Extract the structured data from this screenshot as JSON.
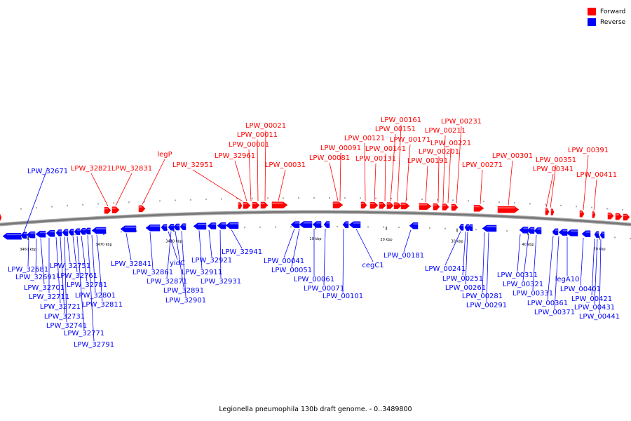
{
  "legend": {
    "items": [
      {
        "label": "Forward",
        "color": "#ff0000"
      },
      {
        "label": "Reverse",
        "color": "#0000ff"
      }
    ]
  },
  "caption": "Legionella pneumophila 130b draft genome. - 0..3489800",
  "colors": {
    "forward": "#ff0000",
    "reverse": "#0000ff",
    "backbone": "#777777"
  },
  "scale": {
    "ticks": [
      "3460 kbp",
      "3470 kbp",
      "3480 kbp",
      "10 kbp",
      "20 kbp",
      "30 kbp",
      "40 kbp",
      "50 kbp"
    ]
  },
  "genes": {
    "forward": [
      "LPW_32821",
      "LPW_32831",
      "legP",
      "LPW_32951",
      "LPW_32961",
      "LPW_00001",
      "LPW_00011",
      "LPW_00021",
      "LPW_00031",
      "LPW_00081",
      "LPW_00091",
      "LPW_00121",
      "LPW_00131",
      "LPW_00141",
      "LPW_00151",
      "LPW_00161",
      "LPW_00171",
      "LPW_00191",
      "LPW_00201",
      "LPW_00211",
      "LPW_00221",
      "LPW_00231",
      "LPW_00271",
      "LPW_00301",
      "LPW_00341",
      "LPW_00351",
      "LPW_00391",
      "LPW_00411"
    ],
    "reverse": [
      "LPW_32671",
      "LPW_32681",
      "LPW_32691",
      "LPW_32701",
      "LPW_32711",
      "LPW_32721",
      "LPW_32731",
      "LPW_32741",
      "LPW_32751",
      "LPW_32761",
      "LPW_32771",
      "LPW_32781",
      "LPW_32791",
      "LPW_32801",
      "LPW_32811",
      "LPW_32841",
      "LPW_32861",
      "yidC",
      "LPW_32871",
      "LPW_32891",
      "LPW_32901",
      "LPW_32911",
      "LPW_32921",
      "LPW_32931",
      "LPW_32941",
      "LPW_00041",
      "LPW_00051",
      "LPW_00061",
      "LPW_00071",
      "LPW_00101",
      "cegC1",
      "LPW_00181",
      "LPW_00241",
      "LPW_00251",
      "LPW_00261",
      "LPW_00281",
      "LPW_00291",
      "LPW_00311",
      "LPW_00321",
      "LPW_00331",
      "LPW_00361",
      "LPW_00371",
      "legA10",
      "LPW_00401",
      "LPW_00421",
      "LPW_00431",
      "LPW_00441"
    ]
  }
}
